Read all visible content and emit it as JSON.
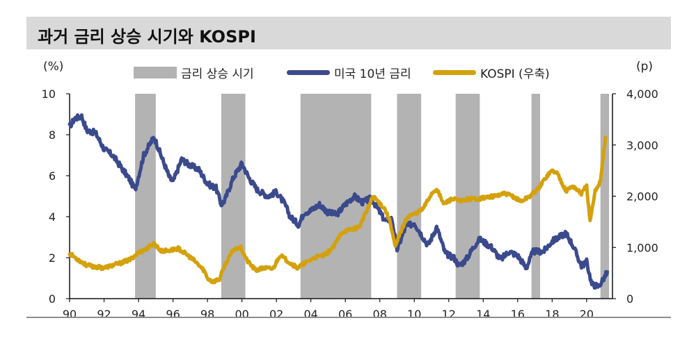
{
  "header": {
    "title": "과거 금리 상승 시기와 KOSPI"
  },
  "colors": {
    "band": "#b3b3b3",
    "us10y": "#3b4a8c",
    "kospi": "#d4a10b",
    "axis": "#111111"
  },
  "chart_data": {
    "type": "line",
    "title": "과거 금리 상승 시기와 KOSPI",
    "left_axis": {
      "unit_label": "(%)",
      "ylim": [
        0,
        10
      ],
      "ticks": [
        "0",
        "2",
        "4",
        "6",
        "8",
        "10"
      ]
    },
    "right_axis": {
      "unit_label": "(p)",
      "ylim": [
        0,
        4000
      ],
      "ticks": [
        "0",
        "1,000",
        "2,000",
        "3,000",
        "4,000"
      ]
    },
    "x_axis": {
      "range": [
        1990,
        2021.5
      ],
      "ticks": [
        "90",
        "92",
        "94",
        "96",
        "98",
        "00",
        "02",
        "04",
        "06",
        "08",
        "10",
        "12",
        "14",
        "16",
        "18",
        "20"
      ]
    },
    "legend": {
      "placement": "top-center",
      "band_label": "금리 상승 시기",
      "us10y_label": "미국 10년 금리",
      "kospi_label": "KOSPI (우축)"
    },
    "rate_hike_periods": [
      [
        1993.8,
        1995.0
      ],
      [
        1998.8,
        2000.2
      ],
      [
        2003.4,
        2007.5
      ],
      [
        2009.0,
        2010.4
      ],
      [
        2012.4,
        2013.8
      ],
      [
        2016.8,
        2017.3
      ],
      [
        2020.8,
        2021.3
      ]
    ],
    "series": [
      {
        "name": "미국 10년 금리",
        "axis": "left",
        "x": [
          1990.0,
          1990.3,
          1990.7,
          1991.0,
          1991.5,
          1992.0,
          1992.5,
          1993.0,
          1993.5,
          1993.8,
          1994.3,
          1994.9,
          1995.3,
          1995.8,
          1996.0,
          1996.5,
          1997.0,
          1997.5,
          1998.0,
          1998.5,
          1998.8,
          1999.0,
          1999.5,
          2000.0,
          2000.4,
          2000.9,
          2001.5,
          2002.0,
          2002.5,
          2002.8,
          2003.3,
          2003.6,
          2004.0,
          2004.5,
          2005.0,
          2005.5,
          2006.0,
          2006.5,
          2007.0,
          2007.5,
          2007.8,
          2008.3,
          2008.7,
          2009.0,
          2009.5,
          2010.0,
          2010.5,
          2010.8,
          2011.3,
          2011.8,
          2012.3,
          2012.6,
          2013.0,
          2013.5,
          2013.8,
          2014.5,
          2015.0,
          2015.5,
          2016.0,
          2016.5,
          2016.9,
          2017.5,
          2018.0,
          2018.8,
          2019.2,
          2019.7,
          2020.0,
          2020.3,
          2020.7,
          2021.0,
          2021.2
        ],
        "y": [
          8.4,
          8.8,
          8.9,
          8.2,
          8.1,
          7.3,
          7.0,
          6.4,
          5.8,
          5.3,
          7.0,
          7.9,
          7.0,
          5.9,
          5.7,
          6.8,
          6.5,
          6.3,
          5.6,
          5.4,
          4.6,
          4.8,
          5.9,
          6.6,
          5.9,
          5.3,
          5.0,
          5.2,
          4.6,
          4.0,
          3.6,
          4.2,
          4.3,
          4.6,
          4.2,
          4.1,
          4.6,
          5.0,
          4.7,
          4.9,
          4.5,
          3.8,
          3.9,
          2.4,
          3.5,
          3.7,
          3.0,
          2.6,
          3.5,
          2.2,
          2.0,
          1.6,
          1.9,
          2.6,
          2.9,
          2.5,
          1.9,
          2.3,
          2.1,
          1.5,
          2.3,
          2.3,
          2.8,
          3.2,
          2.6,
          1.6,
          1.8,
          0.7,
          0.6,
          1.0,
          1.3
        ]
      },
      {
        "name": "KOSPI (우축)",
        "axis": "right",
        "x": [
          1990.0,
          1990.5,
          1991.0,
          1991.5,
          1992.0,
          1992.5,
          1993.0,
          1993.5,
          1994.0,
          1994.5,
          1994.9,
          1995.3,
          1995.8,
          1996.3,
          1996.8,
          1997.3,
          1997.8,
          1998.0,
          1998.3,
          1998.7,
          1999.0,
          1999.5,
          1999.9,
          2000.3,
          2000.8,
          2001.3,
          2001.8,
          2002.2,
          2002.8,
          2003.2,
          2003.7,
          2004.2,
          2004.8,
          2005.3,
          2005.8,
          2006.3,
          2006.8,
          2007.3,
          2007.6,
          2007.9,
          2008.3,
          2008.6,
          2008.9,
          2009.2,
          2009.6,
          2010.0,
          2010.5,
          2011.0,
          2011.3,
          2011.7,
          2012.2,
          2012.7,
          2013.2,
          2013.7,
          2014.2,
          2014.7,
          2015.2,
          2015.7,
          2016.2,
          2016.7,
          2017.2,
          2017.7,
          2018.0,
          2018.3,
          2018.8,
          2019.2,
          2019.7,
          2020.0,
          2020.2,
          2020.5,
          2020.8,
          2021.0,
          2021.1
        ],
        "y": [
          880,
          760,
          650,
          620,
          600,
          650,
          700,
          760,
          900,
          980,
          1080,
          930,
          940,
          980,
          860,
          720,
          550,
          400,
          330,
          380,
          650,
          950,
          1020,
          740,
          550,
          600,
          580,
          850,
          700,
          600,
          700,
          800,
          850,
          1000,
          1300,
          1350,
          1400,
          1750,
          2000,
          1900,
          1750,
          1500,
          1000,
          1300,
          1600,
          1650,
          1750,
          2050,
          2150,
          1850,
          1950,
          1900,
          1950,
          1950,
          1980,
          2000,
          2050,
          2000,
          1900,
          2000,
          2150,
          2400,
          2500,
          2450,
          2100,
          2200,
          2050,
          2200,
          1500,
          2100,
          2300,
          2900,
          3150
        ]
      }
    ]
  }
}
